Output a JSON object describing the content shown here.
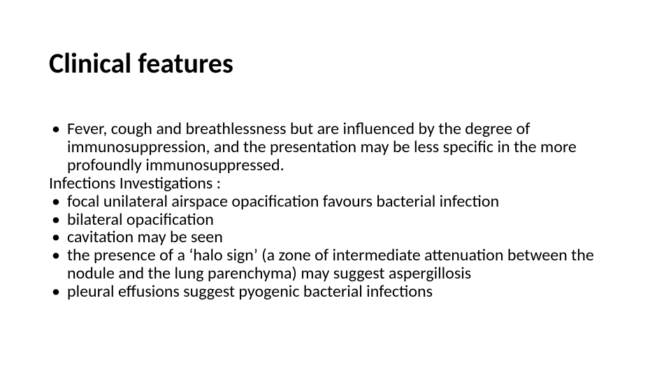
{
  "title": "Clinical features",
  "title_fontsize": 40,
  "title_fontweight": 700,
  "body_fontsize": 24,
  "body_line_height": 1.08,
  "text_color": "#000000",
  "background_color": "#ffffff",
  "items": [
    {
      "kind": "bullet",
      "text": "Fever, cough and breathlessness but are influenced by the degree of immunosuppression, and the presentation may be less specific in the more profoundly immunosuppressed."
    },
    {
      "kind": "plain",
      "text": "Infections Investigations :"
    },
    {
      "kind": "bullet",
      "text": "focal unilateral airspace opacification favours bacterial infection"
    },
    {
      "kind": "bullet",
      "text": "bilateral opacification"
    },
    {
      "kind": "bullet",
      "text": "cavitation may be seen"
    },
    {
      "kind": "bullet",
      "text": "the presence of a ‘halo sign’ (a zone of intermediate attenuation between the nodule and the lung parenchyma) may suggest aspergillosis"
    },
    {
      "kind": "bullet",
      "text": "pleural effusions suggest pyogenic bacterial infections"
    }
  ]
}
